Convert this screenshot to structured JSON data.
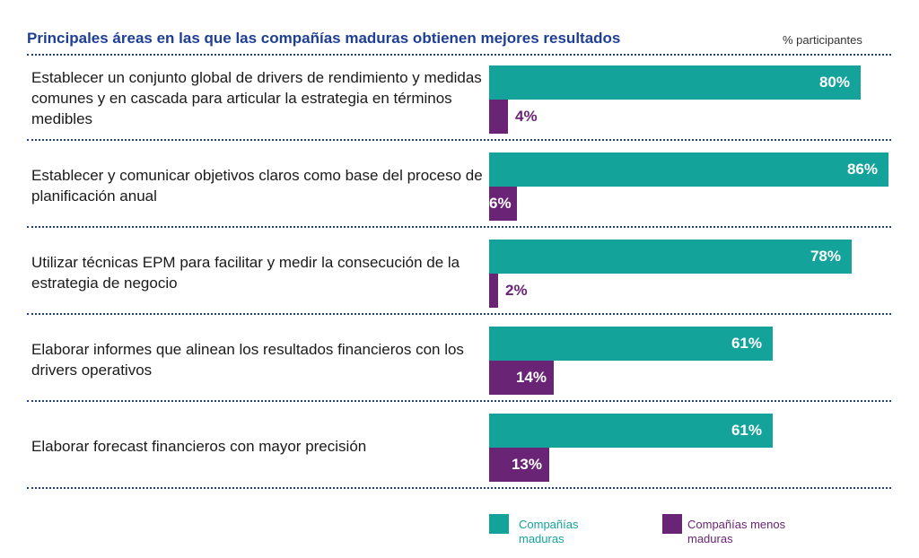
{
  "title": "Principales áreas en las que las compañías maduras obtienen mejores resultados",
  "unit_label": "% participantes",
  "colors": {
    "mature": "#14a39a",
    "less_mature": "#6a2476",
    "title": "#1d3f94"
  },
  "chart_data": {
    "type": "bar",
    "orientation": "horizontal",
    "title": "Principales áreas en las que las compañías maduras obtienen mejores resultados",
    "xlabel": "% participantes",
    "ylabel": "",
    "xlim": [
      0,
      86
    ],
    "grid": false,
    "legend_position": "bottom-right",
    "categories": [
      "Establecer un conjunto global de drivers de rendimiento y medidas comunes y en cascada para articular la estrategia en términos medibles",
      "Establecer y comunicar objetivos claros como base del proceso de planificación anual",
      "Utilizar técnicas EPM para facilitar y medir la consecución de la estrategia de negocio",
      "Elaborar informes que alinean los resultados financieros con los drivers operativos",
      "Elaborar forecast financieros con mayor precisión"
    ],
    "series": [
      {
        "name": "Compañías maduras",
        "values": [
          80,
          86,
          78,
          61,
          61
        ],
        "labels": [
          "80%",
          "86%",
          "78%",
          "61%",
          "61%"
        ]
      },
      {
        "name": "Compañías menos maduras",
        "values": [
          4,
          6,
          2,
          14,
          13
        ],
        "labels": [
          "4%",
          "6%",
          "2%",
          "14%",
          "13%"
        ]
      }
    ]
  },
  "legend": [
    {
      "label_line1": "Compañías",
      "label_line2": "maduras"
    },
    {
      "label_line1": "Compañías menos",
      "label_line2": "maduras"
    }
  ]
}
